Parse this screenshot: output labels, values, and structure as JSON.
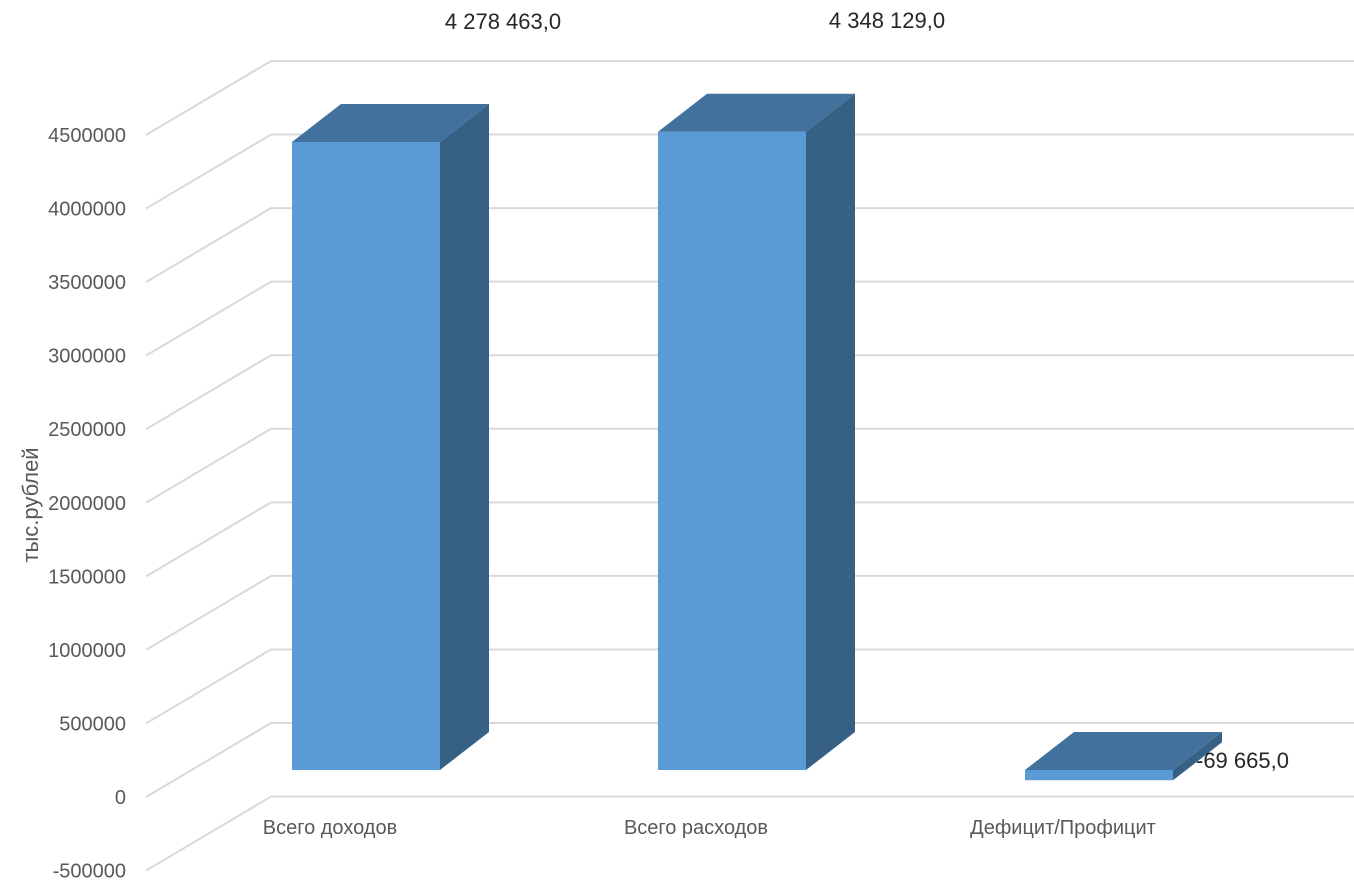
{
  "chart_data": {
    "type": "bar",
    "style": "3d-column",
    "categories": [
      "Всего доходов",
      "Всего расходов",
      "Дефицит/Профицит"
    ],
    "values": [
      4278463.0,
      4348129.0,
      -69665.0
    ],
    "data_labels": [
      "4 278 463,0",
      "4 348 129,0",
      "-69 665,0"
    ],
    "title": "",
    "xlabel": "",
    "ylabel": "тыс.рублей",
    "ylim": [
      -500000,
      4500000
    ],
    "yticks": [
      -500000,
      0,
      500000,
      1000000,
      1500000,
      2000000,
      2500000,
      3000000,
      3500000,
      4000000,
      4500000
    ],
    "ytick_labels": [
      "-500000",
      "0",
      "500000",
      "1000000",
      "1500000",
      "2000000",
      "2500000",
      "3000000",
      "3500000",
      "4000000",
      "4500000"
    ],
    "grid": true,
    "legend": "none",
    "colors": {
      "front": "#5B9BD5",
      "top": "#41719C",
      "side": "#376184",
      "grid": "#D9D9D9"
    }
  }
}
